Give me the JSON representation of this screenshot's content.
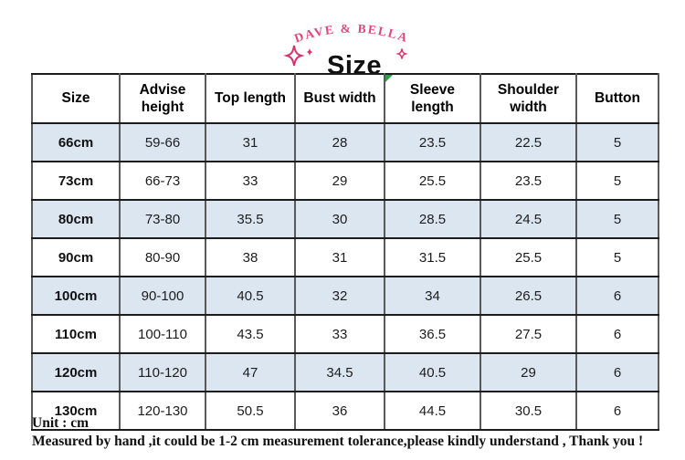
{
  "header": {
    "brand": "DAVE & BELLA",
    "title": "Size"
  },
  "chart_data": {
    "type": "table",
    "title": "Size",
    "columns": [
      "Size",
      "Advise height",
      "Top length",
      "Bust width",
      "Sleeve length",
      "Shoulder width",
      "Button"
    ],
    "rows": [
      [
        "66cm",
        "59-66",
        "31",
        "28",
        "23.5",
        "22.5",
        "5"
      ],
      [
        "73cm",
        "66-73",
        "33",
        "29",
        "25.5",
        "23.5",
        "5"
      ],
      [
        "80cm",
        "73-80",
        "35.5",
        "30",
        "28.5",
        "24.5",
        "5"
      ],
      [
        "90cm",
        "80-90",
        "38",
        "31",
        "31.5",
        "25.5",
        "5"
      ],
      [
        "100cm",
        "90-100",
        "40.5",
        "32",
        "34",
        "26.5",
        "6"
      ],
      [
        "110cm",
        "100-110",
        "43.5",
        "33",
        "36.5",
        "27.5",
        "6"
      ],
      [
        "120cm",
        "110-120",
        "47",
        "34.5",
        "40.5",
        "29",
        "6"
      ],
      [
        "130cm",
        "120-130",
        "50.5",
        "36",
        "44.5",
        "30.5",
        "6"
      ]
    ],
    "unit": "cm",
    "layout_hints": {
      "striped_rows": true,
      "first_data_row_striped": true
    }
  },
  "footer": {
    "unit_label": "Unit : cm",
    "note": "Measured by hand ,it could be 1-2 cm measurement tolerance,please kindly understand , Thank you !"
  },
  "colors": {
    "brand_pink": "#e0457b",
    "sparkle_pink": "#d6336c",
    "stripe_blue": "#dce6f1",
    "flag_green": "#2f9e44"
  }
}
